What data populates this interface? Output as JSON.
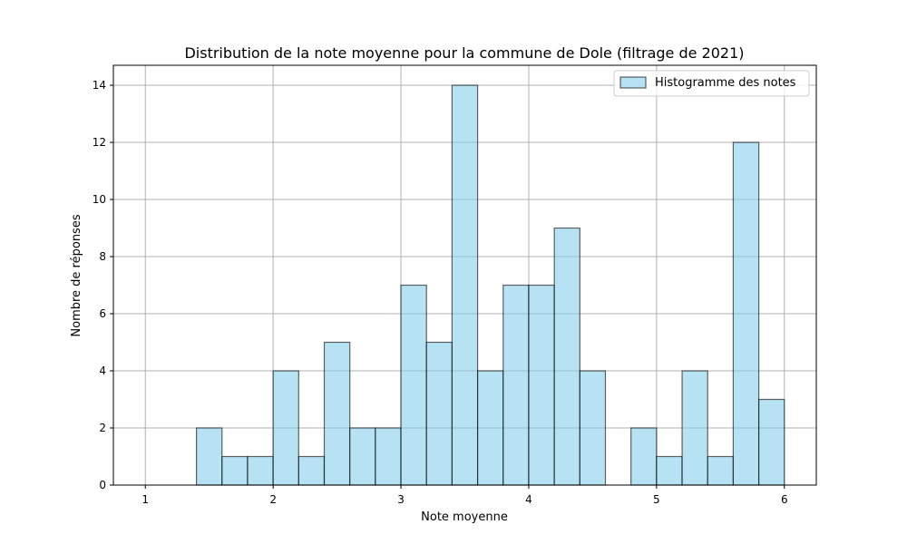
{
  "chart_data": {
    "type": "bar",
    "title": "Distribution de la note moyenne pour la commune de Dole (filtrage de 2021)",
    "xlabel": "Note moyenne",
    "ylabel": "Nombre de réponses",
    "bin_edges": [
      1.0,
      1.2,
      1.4,
      1.6,
      1.8,
      2.0,
      2.2,
      2.4,
      2.6,
      2.8,
      3.0,
      3.2,
      3.4,
      3.6,
      3.8,
      4.0,
      4.2,
      4.4,
      4.6,
      4.8,
      5.0,
      5.2,
      5.4,
      5.6,
      5.8,
      6.0
    ],
    "series": [
      {
        "name": "Histogramme des notes",
        "values": [
          0,
          0,
          2,
          1,
          1,
          4,
          1,
          5,
          2,
          2,
          7,
          5,
          14,
          4,
          7,
          7,
          9,
          4,
          0,
          2,
          1,
          4,
          1,
          12,
          3
        ]
      }
    ],
    "xlim": [
      0.75,
      6.25
    ],
    "ylim": [
      0,
      14.7
    ],
    "xticks": [
      "1",
      "2",
      "3",
      "4",
      "5",
      "6"
    ],
    "xtick_values": [
      1,
      2,
      3,
      4,
      5,
      6
    ],
    "yticks": [
      "0",
      "2",
      "4",
      "6",
      "8",
      "10",
      "12",
      "14"
    ],
    "ytick_values": [
      0,
      2,
      4,
      6,
      8,
      10,
      12,
      14
    ],
    "grid": true,
    "legend_position": "top-right",
    "colors": {
      "bar_fill": "#87ceeb",
      "bar_edge": "#000000",
      "grid": "#b0b0b0",
      "axes": "#000000"
    }
  }
}
